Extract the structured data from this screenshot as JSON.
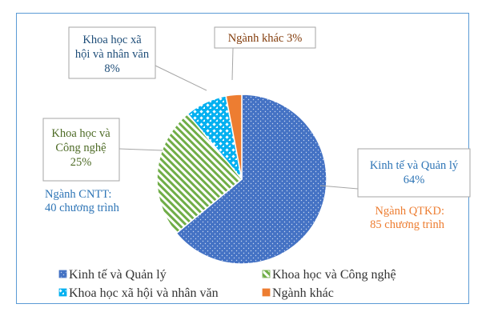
{
  "chart_data": {
    "type": "pie",
    "title": "",
    "series": [
      {
        "name": "Kinh tế và Quản lý",
        "value": 64,
        "label_lines": [
          "Kinh tế và Quản lý",
          "64%"
        ],
        "color": "#4472c4",
        "pattern": "dots"
      },
      {
        "name": "Khoa học và Công nghệ",
        "value": 25,
        "label_lines": [
          "Khoa học và",
          "Công nghệ",
          "25%"
        ],
        "color": "#70ad47",
        "pattern": "diagonal-stripes"
      },
      {
        "name": "Khoa học xã hội và nhân văn",
        "value": 8,
        "label_lines": [
          "Khoa học xã",
          "hội và nhân văn",
          "8%"
        ],
        "color": "#00b0f0",
        "pattern": "checker"
      },
      {
        "name": "Ngành khác",
        "value": 3,
        "label_lines": [
          "Ngành khác 3%"
        ],
        "color": "#ed7d31",
        "pattern": "solid"
      }
    ],
    "legend_position": "bottom",
    "annotations": [
      {
        "lines": [
          "Ngành CNTT:",
          "40 chương trình"
        ],
        "color": "#2e75b6"
      },
      {
        "lines": [
          "Ngành QTKD:",
          "85 chương trình"
        ],
        "color": "#ed7d31"
      }
    ],
    "label_text_colors": [
      "#2e75b6",
      "#4e6b26",
      "#1f4e79",
      "#833c0b"
    ]
  }
}
